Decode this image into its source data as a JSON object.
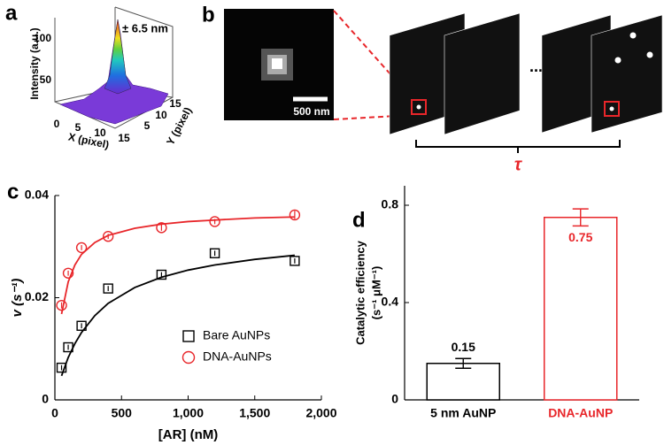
{
  "figure": {
    "panel_a": {
      "label": "a",
      "annotation": "± 6.5 nm",
      "zlabel": "Intensity (a.u.)",
      "xlabel": "X (pixel)",
      "ylabel": "Y (pixel)",
      "zticks": [
        "50",
        "100"
      ],
      "xticks": [
        "0",
        "5",
        "10",
        "15"
      ],
      "yticks": [
        "5",
        "10",
        "15"
      ]
    },
    "panel_b": {
      "label": "b",
      "scale_bar": "500 nm",
      "ellipsis": "...",
      "interval": "τ"
    }
  },
  "chart_data": [
    {
      "panel_label": "c",
      "type": "scatter",
      "xlabel": "[AR] (nM)",
      "ylabel": "v (s⁻¹)",
      "xlim": [
        0,
        2000
      ],
      "xticks": [
        0,
        500,
        {
          "value": 1000,
          "label": "1,000"
        },
        {
          "value": 1500,
          "label": "1,500"
        },
        {
          "value": 2000,
          "label": "2,000"
        }
      ],
      "ylim": [
        0,
        0.04
      ],
      "yticks": [
        0,
        0.02,
        0.04
      ],
      "legend": "lower right",
      "x": [
        50,
        100,
        200,
        400,
        800,
        1200,
        1800
      ],
      "series": [
        {
          "name": "Bare AuNPs",
          "color": "#000000",
          "marker": "square",
          "values": [
            0.0063,
            0.0103,
            0.0145,
            0.0218,
            0.0245,
            0.0287,
            0.0272
          ],
          "errors": [
            0.0005,
            0.0005,
            0.0005,
            0.0005,
            0.0005,
            0.0005,
            0.0005
          ],
          "fit": {
            "x": [
              50,
              100,
              150,
              200,
              300,
              400,
              600,
              800,
              1000,
              1200,
              1500,
              1800
            ],
            "values": [
              0.0047,
              0.0083,
              0.011,
              0.0132,
              0.0165,
              0.0189,
              0.022,
              0.024,
              0.0254,
              0.0264,
              0.0275,
              0.0283
            ]
          }
        },
        {
          "name": "DNA-AuNPs",
          "color": "#e8262a",
          "marker": "circle",
          "values": [
            0.0185,
            0.0248,
            0.0298,
            0.032,
            0.0337,
            0.0349,
            0.0362
          ],
          "errors": [
            0.0006,
            0.0005,
            0.0005,
            0.0005,
            0.0006,
            0.0005,
            0.0008
          ],
          "fit": {
            "x": [
              50,
              100,
              150,
              200,
              300,
              400,
              600,
              800,
              1000,
              1200,
              1500,
              1800
            ],
            "values": [
              0.0168,
              0.0231,
              0.0264,
              0.0285,
              0.0308,
              0.0322,
              0.0336,
              0.0344,
              0.0349,
              0.0352,
              0.0356,
              0.0358
            ]
          }
        }
      ]
    },
    {
      "panel_label": "d",
      "type": "bar",
      "ylabel": [
        "Catalytic efficiency",
        "(s⁻¹ μM⁻¹)"
      ],
      "categories": [
        "5 nm AuNP",
        "DNA-AuNP"
      ],
      "values": [
        0.15,
        0.75
      ],
      "errors": [
        0.02,
        0.035
      ],
      "colors": [
        "#000000",
        "#e8262a"
      ],
      "ylim": [
        0,
        0.88
      ],
      "yticks": [
        0,
        0.4,
        0.8
      ]
    }
  ]
}
